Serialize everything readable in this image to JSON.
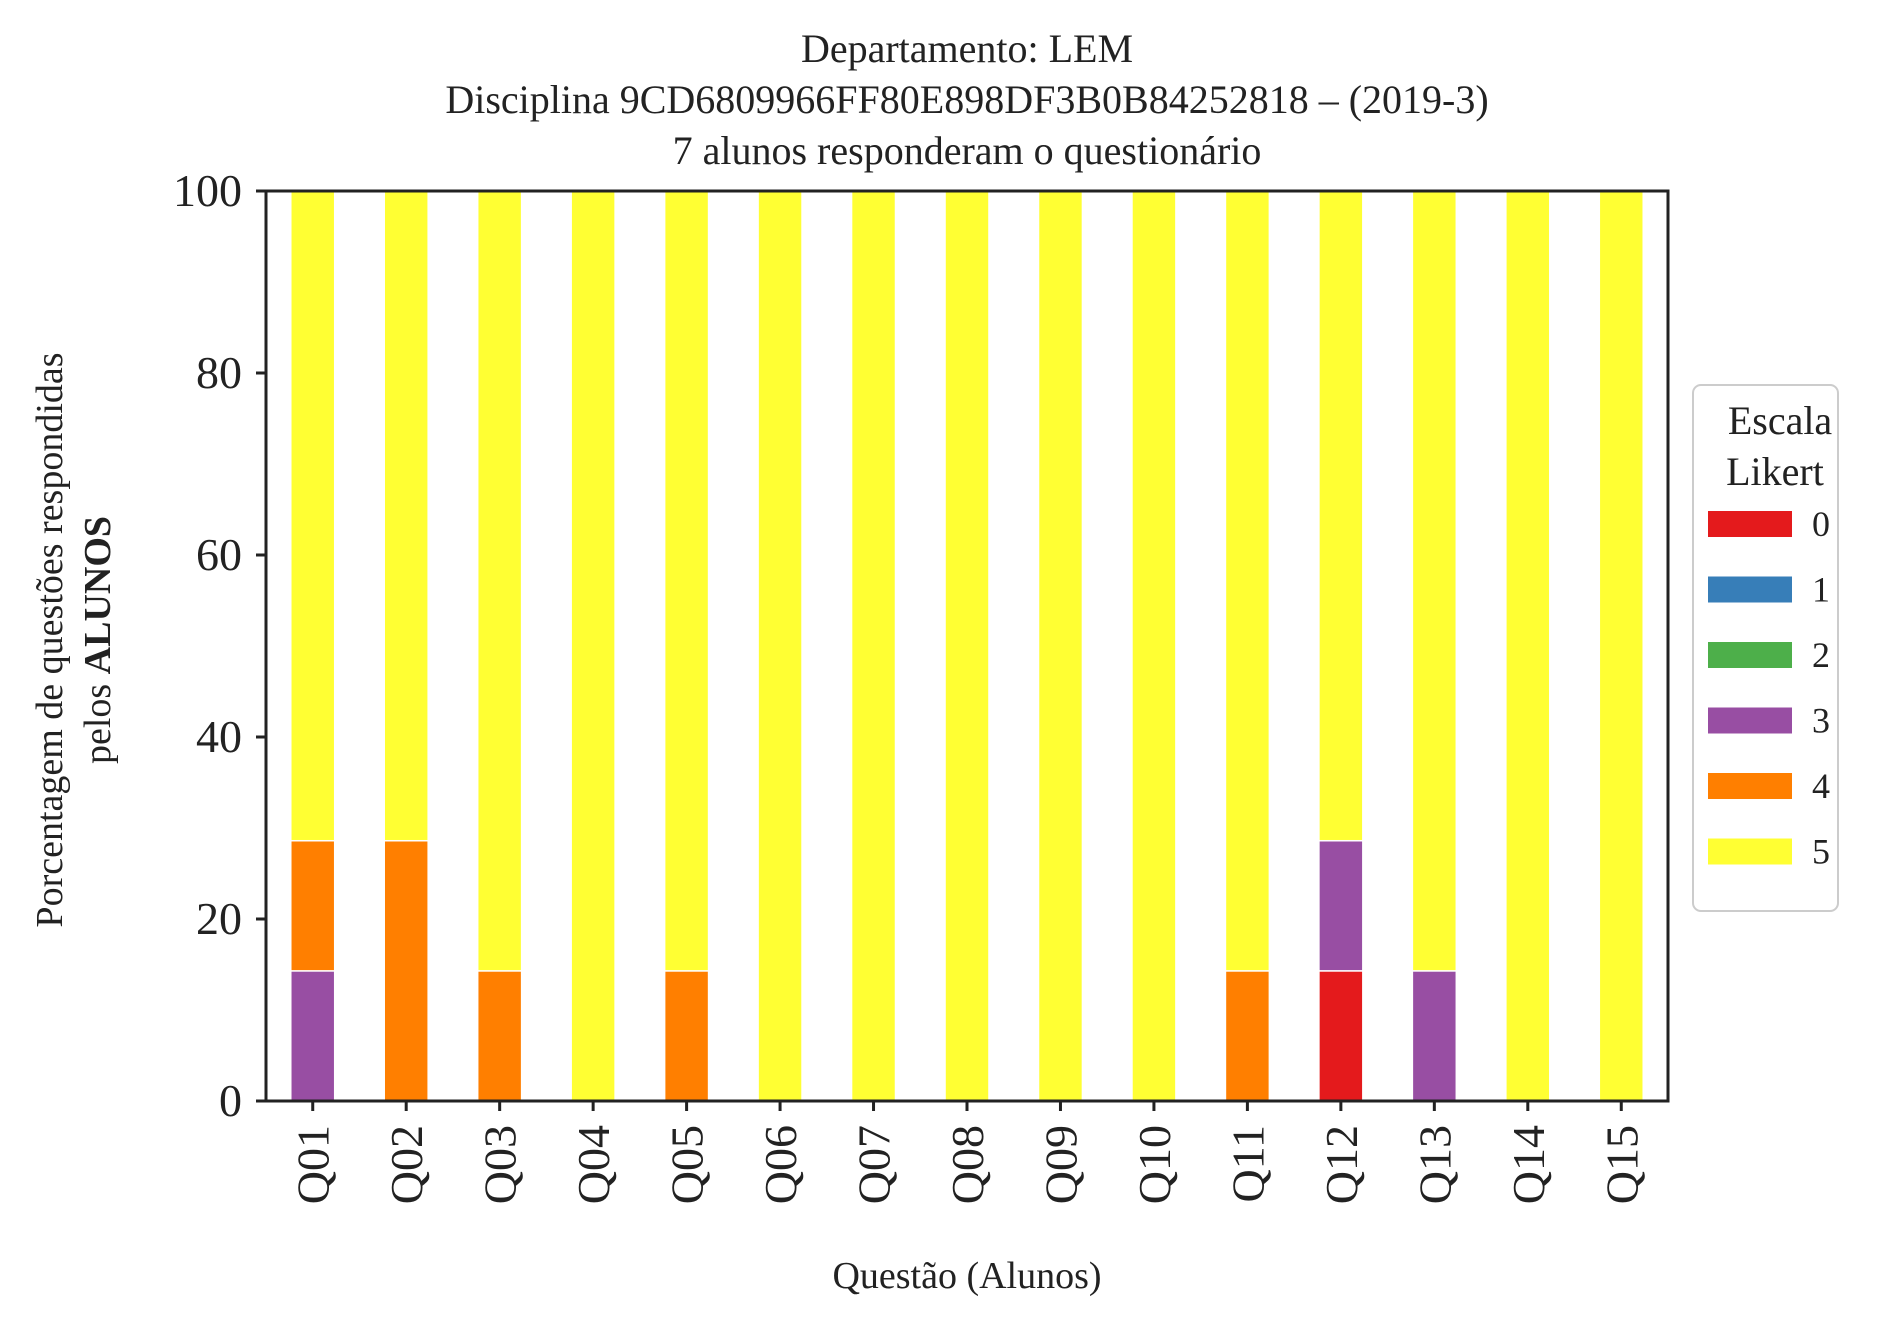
{
  "chart_data": {
    "type": "bar",
    "stacked": true,
    "title_lines": [
      "Departamento: LEM",
      "Disciplina 9CD6809966FF80E898DF3B0B84252818 – (2019-3)",
      "7 alunos responderam o questionário"
    ],
    "xlabel": "Questão (Alunos)",
    "ylabel_line1": "Porcentagem de questões respondidas",
    "ylabel_line2_prefix": "pelos ",
    "ylabel_line2_bold": "ALUNOS",
    "ylim": [
      0,
      100
    ],
    "yticks": [
      "0",
      "20",
      "40",
      "60",
      "80",
      "100"
    ],
    "categories": [
      "Q01",
      "Q02",
      "Q03",
      "Q04",
      "Q05",
      "Q06",
      "Q07",
      "Q08",
      "Q09",
      "Q10",
      "Q11",
      "Q12",
      "Q13",
      "Q14",
      "Q15"
    ],
    "legend": {
      "title_lines": [
        "Escala",
        "Likert"
      ],
      "placement": "right"
    },
    "series": [
      {
        "name": "0",
        "color": "#e41a1c",
        "values": [
          0,
          0,
          0,
          0,
          0,
          0,
          0,
          0,
          0,
          0,
          0,
          14.3,
          0,
          0,
          0
        ]
      },
      {
        "name": "1",
        "color": "#377eb8",
        "values": [
          0,
          0,
          0,
          0,
          0,
          0,
          0,
          0,
          0,
          0,
          0,
          0,
          0,
          0,
          0
        ]
      },
      {
        "name": "2",
        "color": "#4daf4a",
        "values": [
          0,
          0,
          0,
          0,
          0,
          0,
          0,
          0,
          0,
          0,
          0,
          0,
          0,
          0,
          0
        ]
      },
      {
        "name": "3",
        "color": "#984ea3",
        "values": [
          14.3,
          0,
          0,
          0,
          0,
          0,
          0,
          0,
          0,
          0,
          0,
          14.3,
          14.3,
          0,
          0
        ]
      },
      {
        "name": "4",
        "color": "#ff7f00",
        "values": [
          14.3,
          28.6,
          14.3,
          0,
          14.3,
          0,
          0,
          0,
          0,
          0,
          14.3,
          0,
          0,
          0,
          0
        ]
      },
      {
        "name": "5",
        "color": "#ffff33",
        "values": [
          71.4,
          71.4,
          85.7,
          100,
          85.7,
          100,
          100,
          100,
          100,
          100,
          85.7,
          71.4,
          85.7,
          100,
          100
        ]
      }
    ]
  }
}
